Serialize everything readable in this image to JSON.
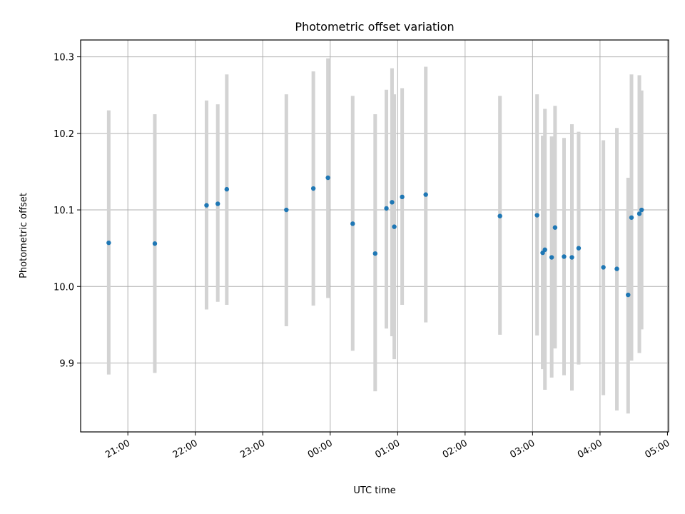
{
  "chart_data": {
    "type": "scatter",
    "title": "Photometric offset variation",
    "xlabel": "UTC time",
    "ylabel": "Photometric offset",
    "xlim": [
      "20:18",
      "05:01"
    ],
    "ylim": [
      9.81,
      10.322
    ],
    "x_ticks": [
      "21:00",
      "22:00",
      "23:00",
      "00:00",
      "01:00",
      "02:00",
      "03:00",
      "04:00",
      "05:00"
    ],
    "y_ticks": [
      9.9,
      10.0,
      10.1,
      10.2,
      10.3
    ],
    "y_tick_labels": [
      "9.9",
      "10.0",
      "10.1",
      "10.2",
      "10.3"
    ],
    "grid": true,
    "point_color": "#1f77b4",
    "errorbar_color": "#d3d3d3",
    "points": [
      {
        "x": "20:43",
        "y": 10.057,
        "y_low": 9.885,
        "y_high": 10.23
      },
      {
        "x": "21:24",
        "y": 10.056,
        "y_low": 9.887,
        "y_high": 10.225
      },
      {
        "x": "22:10",
        "y": 10.106,
        "y_low": 9.97,
        "y_high": 10.243
      },
      {
        "x": "22:20",
        "y": 10.108,
        "y_low": 9.98,
        "y_high": 10.238
      },
      {
        "x": "22:28",
        "y": 10.127,
        "y_low": 9.976,
        "y_high": 10.277
      },
      {
        "x": "23:21",
        "y": 10.1,
        "y_low": 9.948,
        "y_high": 10.251
      },
      {
        "x": "23:45",
        "y": 10.128,
        "y_low": 9.975,
        "y_high": 10.281
      },
      {
        "x": "23:58",
        "y": 10.142,
        "y_low": 9.985,
        "y_high": 10.298
      },
      {
        "x": "00:20",
        "y": 10.082,
        "y_low": 9.916,
        "y_high": 10.249
      },
      {
        "x": "00:40",
        "y": 10.043,
        "y_low": 9.863,
        "y_high": 10.225
      },
      {
        "x": "00:50",
        "y": 10.102,
        "y_low": 9.945,
        "y_high": 10.257
      },
      {
        "x": "00:55",
        "y": 10.11,
        "y_low": 9.935,
        "y_high": 10.285
      },
      {
        "x": "00:57",
        "y": 10.078,
        "y_low": 9.905,
        "y_high": 10.251
      },
      {
        "x": "01:04",
        "y": 10.117,
        "y_low": 9.976,
        "y_high": 10.259
      },
      {
        "x": "01:25",
        "y": 10.12,
        "y_low": 9.953,
        "y_high": 10.287
      },
      {
        "x": "02:31",
        "y": 10.092,
        "y_low": 9.937,
        "y_high": 10.249
      },
      {
        "x": "03:04",
        "y": 10.093,
        "y_low": 9.936,
        "y_high": 10.251
      },
      {
        "x": "03:09",
        "y": 10.044,
        "y_low": 9.892,
        "y_high": 10.197
      },
      {
        "x": "03:11",
        "y": 10.048,
        "y_low": 9.865,
        "y_high": 10.232
      },
      {
        "x": "03:17",
        "y": 10.038,
        "y_low": 9.881,
        "y_high": 10.196
      },
      {
        "x": "03:20",
        "y": 10.077,
        "y_low": 9.919,
        "y_high": 10.236
      },
      {
        "x": "03:28",
        "y": 10.039,
        "y_low": 9.884,
        "y_high": 10.194
      },
      {
        "x": "03:35",
        "y": 10.038,
        "y_low": 9.864,
        "y_high": 10.212
      },
      {
        "x": "03:41",
        "y": 10.05,
        "y_low": 9.898,
        "y_high": 10.202
      },
      {
        "x": "04:03",
        "y": 10.025,
        "y_low": 9.858,
        "y_high": 10.191
      },
      {
        "x": "04:15",
        "y": 10.023,
        "y_low": 9.838,
        "y_high": 10.207
      },
      {
        "x": "04:25",
        "y": 9.989,
        "y_low": 9.834,
        "y_high": 10.142
      },
      {
        "x": "04:28",
        "y": 10.09,
        "y_low": 9.903,
        "y_high": 10.277
      },
      {
        "x": "04:35",
        "y": 10.095,
        "y_low": 9.913,
        "y_high": 10.276
      },
      {
        "x": "04:37",
        "y": 10.1,
        "y_low": 9.944,
        "y_high": 10.256
      }
    ]
  }
}
